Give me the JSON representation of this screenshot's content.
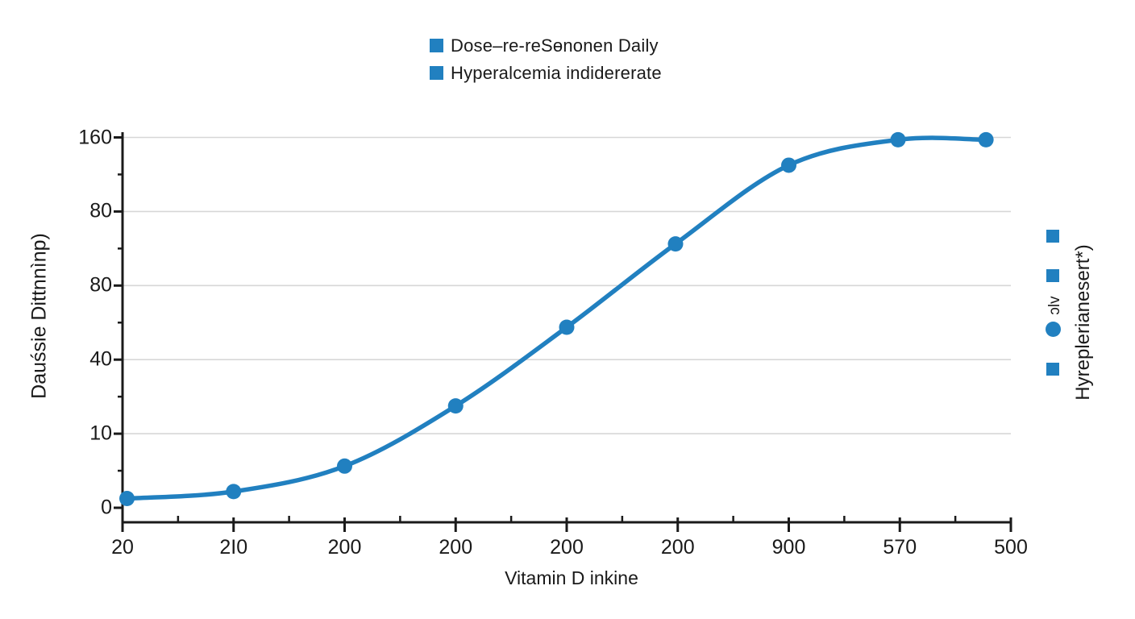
{
  "colors": {
    "accent": "#2180c0",
    "axis": "#1a1a1a",
    "grid": "#d7d7d7",
    "text": "#1a1a1a",
    "background": "#ffffff"
  },
  "legend": {
    "items": [
      {
        "label": "Dose–re-reSɵnonen Daily",
        "swatch": "blue-square-icon"
      },
      {
        "label": "Hyperalcemia indidererate",
        "swatch": "blue-square-icon"
      }
    ]
  },
  "right_panel": {
    "label": "Hyreplerianesert*)",
    "small_label": "ɔlv",
    "markers": [
      "square",
      "square",
      "circle",
      "square"
    ]
  },
  "chart_data": {
    "type": "line",
    "title": "",
    "xlabel": "Vitamin D inkine",
    "ylabel": "Dauśsie Dittnnìnp)",
    "legend_position": "top",
    "grid": "horizontal",
    "ylim": [
      0,
      160
    ],
    "x_tick_labels": [
      "20",
      "2I0",
      "200",
      "200",
      "200",
      "200",
      "900",
      "570",
      "500"
    ],
    "y_tick_labels_bottom_to_top": [
      "0",
      "10",
      "40",
      "80",
      "80",
      "160"
    ],
    "series": [
      {
        "name": "Dose–re-reSɵnonen Daily",
        "marker": "circle",
        "x_frac": [
          0.005,
          0.125,
          0.25,
          0.375,
          0.5,
          0.6225,
          0.75,
          0.873,
          0.972
        ],
        "values": [
          4,
          7,
          18,
          44,
          78,
          114,
          148,
          159,
          159
        ]
      }
    ]
  }
}
